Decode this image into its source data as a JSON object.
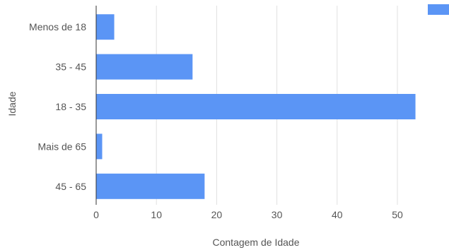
{
  "chart_data": {
    "type": "bar",
    "orientation": "horizontal",
    "categories": [
      "Menos de 18",
      "35 - 45",
      "18 - 35",
      "Mais de 65",
      "45 - 65"
    ],
    "series": [
      {
        "values": [
          3,
          16,
          53,
          1,
          18
        ]
      }
    ],
    "xlabel": "Contagem de Idade",
    "ylabel": "Idade",
    "xlim": [
      0,
      58
    ],
    "xticks": [
      "0",
      "10",
      "20",
      "30",
      "40",
      "50"
    ],
    "grid": true,
    "legend": "top-right",
    "bar_color": "#5b95f5"
  }
}
